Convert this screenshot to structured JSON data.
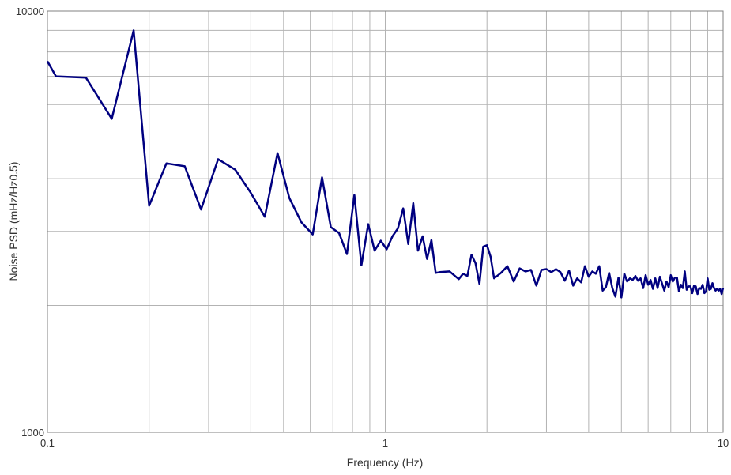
{
  "chart_data": {
    "type": "line",
    "title": "",
    "xlabel": "Frequency (Hz)",
    "ylabel": "Noise PSD (mHz/Hz0.5)",
    "xscale": "log",
    "yscale": "log",
    "xlim": [
      0.1,
      10
    ],
    "ylim": [
      1000,
      10000
    ],
    "x_ticks": [
      "0.1",
      "1",
      "10"
    ],
    "y_ticks": [
      "1000",
      "10000"
    ],
    "grid": true,
    "legend": "none",
    "colors": {
      "line": "#000080",
      "grid": "#b3b3b3",
      "axis": "#808080"
    },
    "series": [
      {
        "x": [
          0.1,
          0.106,
          0.13,
          0.155,
          0.18,
          0.2,
          0.225,
          0.255,
          0.285,
          0.32,
          0.36,
          0.4,
          0.44,
          0.48,
          0.52,
          0.565,
          0.61,
          0.65,
          0.69,
          0.73,
          0.77,
          0.81,
          0.85,
          0.89,
          0.93,
          0.97,
          1.01,
          1.05,
          1.09,
          1.13,
          1.17,
          1.21,
          1.25,
          1.29,
          1.33,
          1.37,
          1.41,
          1.45,
          1.55,
          1.65,
          1.7,
          1.75,
          1.8,
          1.85,
          1.9,
          1.95,
          2.0,
          2.05,
          2.1,
          2.2,
          2.3,
          2.4,
          2.5,
          2.6,
          2.7,
          2.8,
          2.9,
          3.0,
          3.1,
          3.2,
          3.3,
          3.4,
          3.5,
          3.6,
          3.7,
          3.8,
          3.9,
          4.0,
          4.1,
          4.2,
          4.3,
          4.4,
          4.5,
          4.6,
          4.7,
          4.8,
          4.9,
          5.0,
          5.1,
          5.2,
          5.3,
          5.4,
          5.5,
          5.6,
          5.7,
          5.8,
          5.9,
          6.0,
          6.1,
          6.2,
          6.3,
          6.4,
          6.5,
          6.6,
          6.7,
          6.8,
          6.9,
          7.0,
          7.1,
          7.2,
          7.3,
          7.4,
          7.5,
          7.6,
          7.7,
          7.8,
          7.9,
          8.0,
          8.1,
          8.2,
          8.3,
          8.4,
          8.5,
          8.6,
          8.7,
          8.8,
          8.9,
          9.0,
          9.1,
          9.2,
          9.3,
          9.4,
          9.5,
          9.6,
          9.7,
          9.8,
          9.9,
          10.0
        ],
        "values": [
          7600,
          7000,
          6950,
          5550,
          9000,
          3450,
          4350,
          4280,
          3380,
          4450,
          4200,
          3700,
          3250,
          4600,
          3600,
          3150,
          2950,
          4030,
          3070,
          2970,
          2650,
          3660,
          2490,
          3120,
          2700,
          2850,
          2720,
          2920,
          3050,
          3400,
          2800,
          3500,
          2700,
          2920,
          2580,
          2860,
          2390,
          2400,
          2410,
          2310,
          2380,
          2350,
          2640,
          2520,
          2250,
          2760,
          2780,
          2610,
          2320,
          2390,
          2480,
          2280,
          2450,
          2410,
          2430,
          2230,
          2430,
          2440,
          2400,
          2440,
          2400,
          2290,
          2420,
          2230,
          2320,
          2270,
          2480,
          2340,
          2410,
          2380,
          2480,
          2170,
          2210,
          2390,
          2200,
          2100,
          2330,
          2090,
          2380,
          2280,
          2320,
          2300,
          2350,
          2290,
          2320,
          2200,
          2360,
          2240,
          2300,
          2190,
          2320,
          2200,
          2340,
          2250,
          2170,
          2280,
          2210,
          2360,
          2280,
          2330,
          2330,
          2160,
          2240,
          2200,
          2410,
          2180,
          2220,
          2220,
          2140,
          2230,
          2220,
          2130,
          2200,
          2190,
          2240,
          2140,
          2160,
          2320,
          2180,
          2190,
          2260,
          2200,
          2170,
          2190,
          2170,
          2190,
          2130,
          2200
        ]
      }
    ]
  }
}
